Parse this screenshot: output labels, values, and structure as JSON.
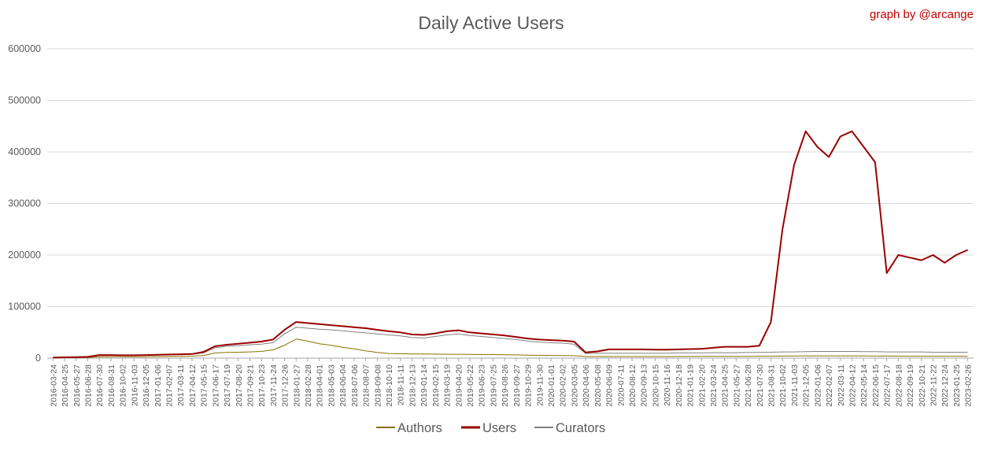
{
  "credit": "graph by @arcange",
  "colors": {
    "authors": "#8a7000",
    "users": "#990000",
    "curators": "#808080",
    "credit": "#c00000",
    "grid": "#d9d9d9",
    "axis": "#a6a6a6",
    "title": "#595959"
  },
  "chart_data": {
    "type": "line",
    "title": "Daily Active Users",
    "xlabel": "",
    "ylabel": "",
    "ylim": [
      0,
      600000
    ],
    "yticks": [
      "0",
      "100000",
      "200000",
      "300000",
      "400000",
      "500000",
      "600000"
    ],
    "grid": true,
    "legend_position": "bottom",
    "x_range": [
      "2016-03-24",
      "2023-03-13"
    ],
    "categories": [
      "2016-03-24",
      "2016-04-25",
      "2016-05-27",
      "2016-06-28",
      "2016-07-30",
      "2016-08-31",
      "2016-10-02",
      "2016-11-03",
      "2016-12-05",
      "2017-01-06",
      "2017-02-07",
      "2017-03-11",
      "2017-04-12",
      "2017-05-15",
      "2017-06-17",
      "2017-07-19",
      "2017-08-20",
      "2017-09-21",
      "2017-10-23",
      "2017-11-24",
      "2017-12-26",
      "2018-01-27",
      "2018-02-28",
      "2018-04-01",
      "2018-05-03",
      "2018-06-04",
      "2018-07-06",
      "2018-08-07",
      "2018-09-08",
      "2018-10-10",
      "2018-11-11",
      "2018-12-13",
      "2019-01-14",
      "2019-02-15",
      "2019-03-19",
      "2019-04-20",
      "2019-05-22",
      "2019-06-23",
      "2019-07-25",
      "2019-08-26",
      "2019-09-27",
      "2019-10-29",
      "2019-11-30",
      "2020-01-01",
      "2020-02-02",
      "2020-03-05",
      "2020-04-06",
      "2020-05-08",
      "2020-06-09",
      "2020-07-11",
      "2020-08-12",
      "2020-09-13",
      "2020-10-15",
      "2020-11-16",
      "2020-12-18",
      "2021-01-19",
      "2021-02-20",
      "2021-03-24",
      "2021-04-25",
      "2021-05-27",
      "2021-06-28",
      "2021-07-30",
      "2021-08-31",
      "2021-10-02",
      "2021-11-03",
      "2021-12-05",
      "2022-01-06",
      "2022-02-07",
      "2022-03-11",
      "2022-04-12",
      "2022-05-14",
      "2022-06-15",
      "2022-07-17",
      "2022-08-18",
      "2022-09-19",
      "2022-10-21",
      "2022-11-22",
      "2022-12-24",
      "2023-01-25",
      "2023-02-26"
    ],
    "x_tick_labels": [
      "2016-03-24",
      "2016-04-25",
      "2016-05-27",
      "2016-06-28",
      "2016-07-30",
      "2016-08-31",
      "2016-10-02",
      "2016-11-03",
      "2016-12-05",
      "2017-01-06",
      "2017-02-07",
      "2017-03-11",
      "2017-04-12",
      "2017-05-15",
      "2017-06-17",
      "2017-07-19",
      "2017-08-20",
      "2017-09-21",
      "2017-10-23",
      "2017-11-24",
      "2017-12-26",
      "2018-01-27",
      "2018-02-28",
      "2018-04-01",
      "2018-05-03",
      "2018-06-04",
      "2018-07-06",
      "2018-08-07",
      "2018-09-08",
      "2018-10-10",
      "2018-11-11",
      "2018-12-13",
      "2019-01-14",
      "2019-02-15",
      "2019-03-19",
      "2019-04-20",
      "2019-05-22",
      "2019-06-23",
      "2019-07-25",
      "2019-08-26",
      "2019-09-27",
      "2019-10-29",
      "2019-11-30",
      "2020-01-01",
      "2020-02-02",
      "2020-03-05",
      "2020-04-06",
      "2020-05-08",
      "2020-06-09",
      "2020-07-11",
      "2020-08-12",
      "2020-09-13",
      "2020-10-15",
      "2020-11-16",
      "2020-12-18",
      "2021-01-19",
      "2021-02-20",
      "2021-03-24",
      "2021-04-25",
      "2021-05-27",
      "2021-06-28",
      "2021-07-30",
      "2021-08-31",
      "2021-10-02",
      "2021-11-03",
      "2021-12-05",
      "2022-01-06",
      "2022-02-07",
      "2022-03-11",
      "2022-04-12",
      "2022-05-14",
      "2022-06-15",
      "2022-07-17",
      "2022-08-18",
      "2022-09-19",
      "2022-10-21",
      "2022-11-22",
      "2022-12-24",
      "2023-01-25",
      "2023-02-26"
    ],
    "series": [
      {
        "name": "Authors",
        "values": [
          500,
          800,
          1000,
          1200,
          2500,
          2800,
          2600,
          2500,
          2700,
          3000,
          3200,
          3500,
          3800,
          5000,
          10000,
          11000,
          11500,
          12000,
          13000,
          16000,
          25000,
          37000,
          33000,
          28000,
          25000,
          21000,
          18000,
          14000,
          11000,
          9000,
          8500,
          8000,
          8000,
          7800,
          7500,
          7500,
          7200,
          7000,
          6800,
          6500,
          6300,
          5800,
          5500,
          5200,
          5000,
          4800,
          3000,
          3000,
          3000,
          3000,
          3100,
          3100,
          3100,
          3100,
          3200,
          3200,
          3300,
          3400,
          3500,
          3500,
          3500,
          3600,
          3700,
          4000,
          4200,
          4300,
          4300,
          4300,
          4300,
          4300,
          4200,
          4000,
          3900,
          3800,
          3700,
          3700,
          3600,
          3600,
          3600,
          3500
        ]
      },
      {
        "name": "Users",
        "values": [
          1000,
          1500,
          2000,
          2500,
          6000,
          6000,
          5500,
          5500,
          6000,
          6500,
          7000,
          7500,
          8000,
          12000,
          23000,
          26000,
          28000,
          30000,
          32000,
          36000,
          55000,
          70000,
          68000,
          66000,
          64000,
          62000,
          60000,
          58000,
          55000,
          52000,
          50000,
          46000,
          45000,
          48000,
          52000,
          54000,
          50000,
          48000,
          46000,
          44000,
          41000,
          38000,
          36000,
          35000,
          34000,
          32000,
          11000,
          13000,
          17000,
          17000,
          17000,
          17000,
          16500,
          16500,
          17000,
          17500,
          18000,
          20000,
          22000,
          22000,
          22000,
          24000,
          70000,
          250000,
          375000,
          440000,
          410000,
          390000,
          430000,
          440000,
          410000,
          380000,
          165000,
          200000,
          195000,
          190000,
          200000,
          185000,
          200000,
          210000
        ]
      },
      {
        "name": "Curators",
        "values": [
          800,
          1200,
          1800,
          2200,
          5000,
          5200,
          5000,
          5000,
          5500,
          6000,
          6500,
          7000,
          7500,
          10000,
          20000,
          23000,
          24000,
          26000,
          27000,
          30000,
          47000,
          60000,
          58000,
          56000,
          55000,
          53000,
          51000,
          49000,
          47000,
          45000,
          43000,
          40000,
          39000,
          42000,
          45000,
          47000,
          44000,
          42000,
          40000,
          38000,
          36000,
          33000,
          31000,
          30000,
          29000,
          27000,
          9000,
          9500,
          9500,
          9500,
          9500,
          9500,
          9500,
          9500,
          10000,
          10000,
          10000,
          10500,
          10500,
          10500,
          11000,
          11000,
          11500,
          12000,
          12000,
          12500,
          13000,
          13000,
          13000,
          13000,
          12500,
          12500,
          12000,
          12000,
          12000,
          12000,
          11500,
          11500,
          11500,
          11500
        ]
      }
    ]
  }
}
